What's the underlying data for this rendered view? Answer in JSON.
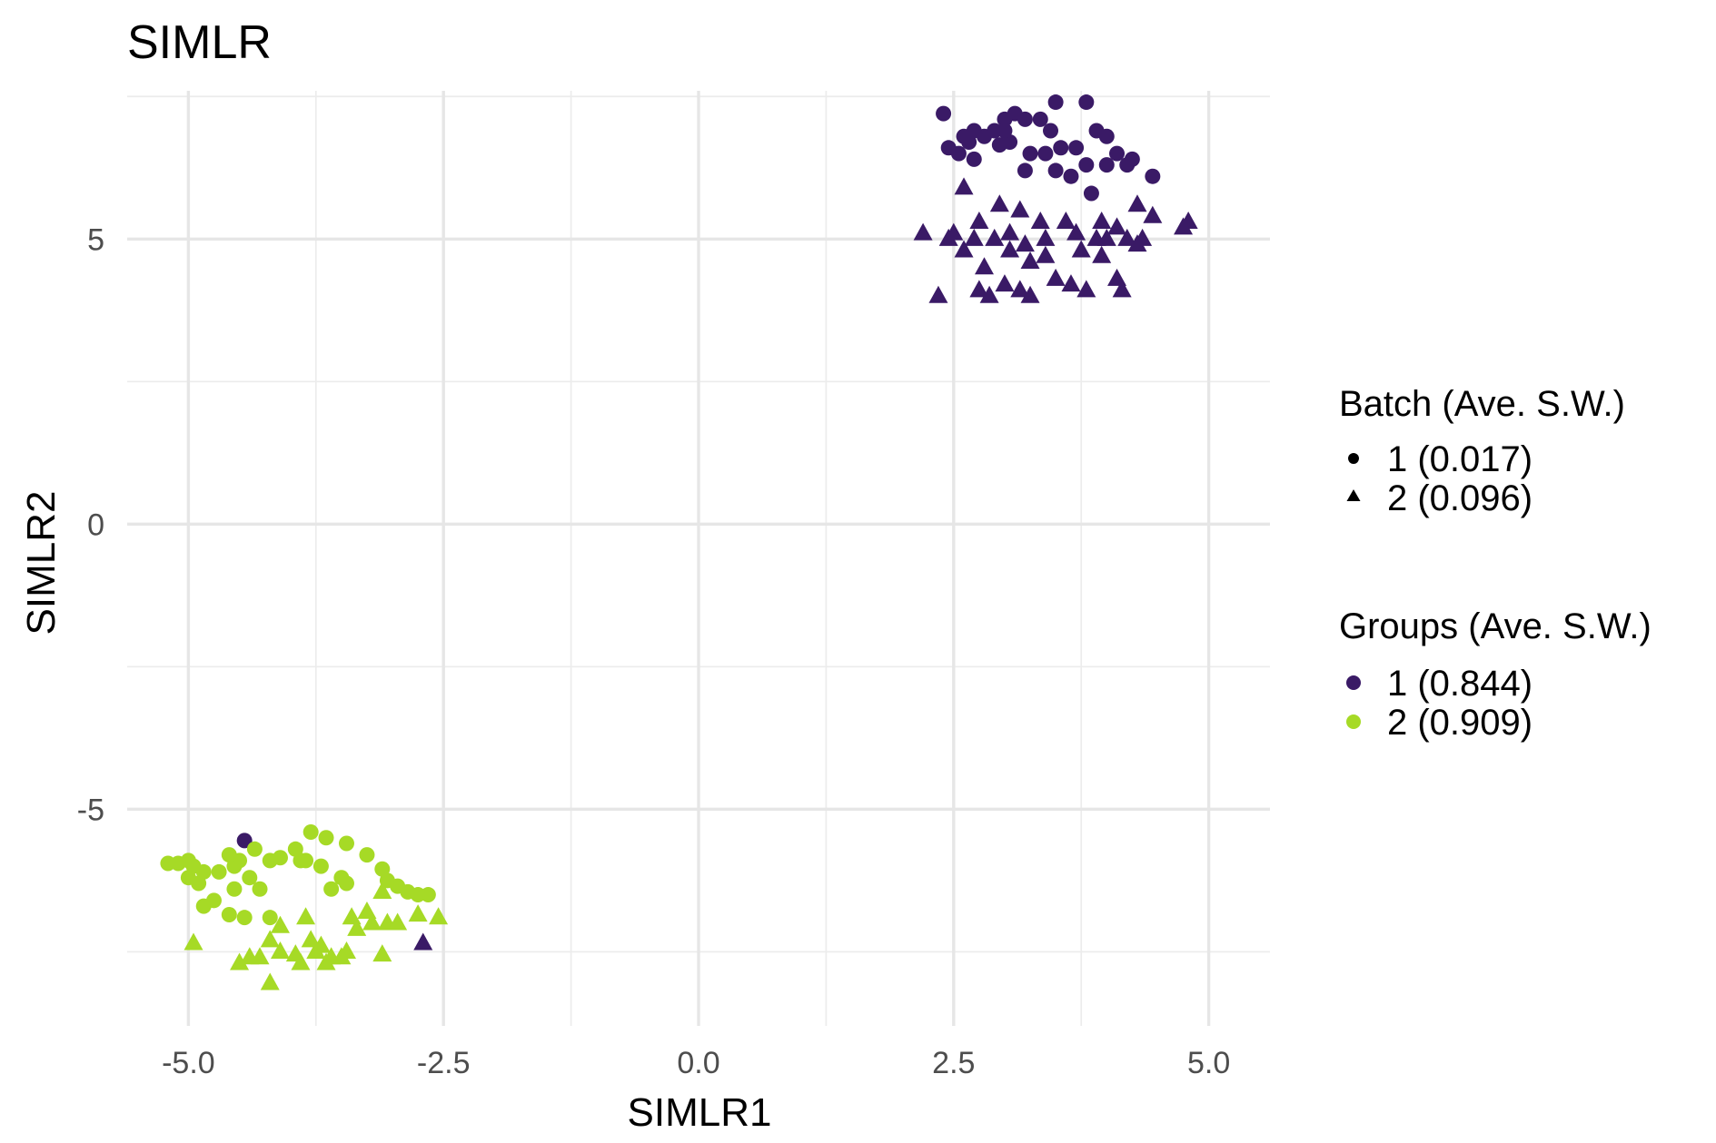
{
  "chart_data": {
    "type": "scatter",
    "title": "SIMLR",
    "xlabel": "SIMLR1",
    "ylabel": "SIMLR2",
    "xlim": [
      -5.6,
      5.6
    ],
    "ylim": [
      -8.8,
      7.6
    ],
    "x_ticks": [
      -5.0,
      -2.5,
      0.0,
      2.5,
      5.0
    ],
    "x_tick_labels": [
      "-5.0",
      "-2.5",
      "0.0",
      "2.5",
      "5.0"
    ],
    "y_ticks": [
      -5,
      0,
      5
    ],
    "y_tick_labels": [
      "-5",
      "0",
      "5"
    ],
    "grid": true,
    "legend_position": "right",
    "colors": {
      "group1": "#3a1a66",
      "group2": "#a6da26",
      "shape_key": "#000000"
    },
    "legend": {
      "batch": {
        "title": "Batch (Ave. S.W.)",
        "entries": [
          {
            "label": "1 (0.017)",
            "shape": "circle"
          },
          {
            "label": "2 (0.096)",
            "shape": "triangle"
          }
        ]
      },
      "groups": {
        "title": "Groups (Ave. S.W.)",
        "entries": [
          {
            "label": "1 (0.844)",
            "color": "#3a1a66"
          },
          {
            "label": "2 (0.909)",
            "color": "#a6da26"
          }
        ]
      }
    },
    "series": [
      {
        "group": 1,
        "batch": 1,
        "points": [
          [
            2.4,
            7.2
          ],
          [
            2.6,
            6.8
          ],
          [
            2.7,
            6.9
          ],
          [
            2.9,
            6.9
          ],
          [
            3.0,
            7.1
          ],
          [
            3.1,
            7.2
          ],
          [
            3.2,
            7.1
          ],
          [
            3.35,
            7.1
          ],
          [
            3.5,
            7.4
          ],
          [
            3.8,
            7.4
          ],
          [
            3.9,
            6.9
          ],
          [
            4.0,
            6.8
          ],
          [
            2.45,
            6.6
          ],
          [
            2.65,
            6.7
          ],
          [
            2.8,
            6.8
          ],
          [
            2.95,
            6.65
          ],
          [
            3.05,
            6.7
          ],
          [
            3.25,
            6.5
          ],
          [
            3.4,
            6.5
          ],
          [
            3.55,
            6.6
          ],
          [
            3.7,
            6.6
          ],
          [
            4.1,
            6.5
          ],
          [
            4.25,
            6.4
          ],
          [
            2.7,
            6.4
          ],
          [
            3.2,
            6.2
          ],
          [
            3.5,
            6.2
          ],
          [
            3.8,
            6.3
          ],
          [
            4.0,
            6.3
          ],
          [
            4.2,
            6.3
          ],
          [
            4.45,
            6.1
          ],
          [
            3.65,
            6.1
          ],
          [
            3.85,
            5.8
          ],
          [
            3.0,
            6.9
          ],
          [
            3.45,
            6.9
          ],
          [
            2.55,
            6.5
          ]
        ]
      },
      {
        "group": 1,
        "batch": 2,
        "points": [
          [
            2.2,
            5.1
          ],
          [
            2.45,
            5.0
          ],
          [
            2.6,
            5.9
          ],
          [
            2.75,
            5.3
          ],
          [
            2.95,
            5.6
          ],
          [
            3.15,
            5.5
          ],
          [
            3.35,
            5.3
          ],
          [
            3.6,
            5.3
          ],
          [
            3.95,
            5.3
          ],
          [
            4.1,
            5.2
          ],
          [
            4.3,
            5.6
          ],
          [
            4.45,
            5.4
          ],
          [
            4.8,
            5.3
          ],
          [
            2.5,
            5.1
          ],
          [
            2.7,
            5.0
          ],
          [
            2.9,
            5.0
          ],
          [
            3.05,
            5.1
          ],
          [
            3.2,
            4.9
          ],
          [
            3.4,
            5.0
          ],
          [
            3.7,
            5.1
          ],
          [
            3.9,
            5.0
          ],
          [
            4.0,
            5.0
          ],
          [
            4.2,
            5.0
          ],
          [
            4.35,
            5.0
          ],
          [
            4.75,
            5.2
          ],
          [
            2.6,
            4.8
          ],
          [
            2.8,
            4.5
          ],
          [
            3.05,
            4.8
          ],
          [
            3.25,
            4.6
          ],
          [
            3.4,
            4.7
          ],
          [
            3.75,
            4.8
          ],
          [
            3.95,
            4.7
          ],
          [
            4.1,
            4.3
          ],
          [
            2.35,
            4.0
          ],
          [
            2.75,
            4.1
          ],
          [
            2.85,
            4.0
          ],
          [
            3.0,
            4.2
          ],
          [
            3.15,
            4.1
          ],
          [
            3.25,
            4.0
          ],
          [
            3.5,
            4.3
          ],
          [
            3.65,
            4.2
          ],
          [
            3.8,
            4.1
          ],
          [
            4.15,
            4.1
          ],
          [
            4.3,
            4.9
          ]
        ]
      },
      {
        "group": 1,
        "batch": 1,
        "points": [
          [
            -4.45,
            -5.55
          ]
        ]
      },
      {
        "group": 1,
        "batch": 2,
        "points": [
          [
            -2.7,
            -7.35
          ]
        ]
      },
      {
        "group": 2,
        "batch": 1,
        "points": [
          [
            -5.2,
            -5.95
          ],
          [
            -5.1,
            -5.95
          ],
          [
            -5.0,
            -5.9
          ],
          [
            -4.95,
            -6.0
          ],
          [
            -4.85,
            -6.1
          ],
          [
            -4.7,
            -6.1
          ],
          [
            -4.55,
            -6.0
          ],
          [
            -4.5,
            -5.9
          ],
          [
            -4.35,
            -5.7
          ],
          [
            -4.2,
            -5.9
          ],
          [
            -3.95,
            -5.7
          ],
          [
            -3.8,
            -5.4
          ],
          [
            -3.65,
            -5.5
          ],
          [
            -3.45,
            -5.6
          ],
          [
            -3.25,
            -5.8
          ],
          [
            -3.85,
            -5.9
          ],
          [
            -3.7,
            -6.0
          ],
          [
            -3.5,
            -6.2
          ],
          [
            -3.45,
            -6.3
          ],
          [
            -3.05,
            -6.25
          ],
          [
            -2.95,
            -6.35
          ],
          [
            -2.85,
            -6.45
          ],
          [
            -2.75,
            -6.5
          ],
          [
            -2.65,
            -6.5
          ],
          [
            -4.9,
            -6.3
          ],
          [
            -4.75,
            -6.6
          ],
          [
            -4.55,
            -6.4
          ],
          [
            -4.3,
            -6.4
          ],
          [
            -4.2,
            -6.9
          ],
          [
            -4.45,
            -6.9
          ],
          [
            -4.6,
            -6.85
          ],
          [
            -4.85,
            -6.7
          ],
          [
            -5.0,
            -6.2
          ],
          [
            -4.4,
            -6.2
          ],
          [
            -3.6,
            -6.4
          ],
          [
            -4.1,
            -5.85
          ],
          [
            -4.6,
            -5.8
          ],
          [
            -3.1,
            -6.05
          ],
          [
            -3.9,
            -5.9
          ]
        ]
      },
      {
        "group": 2,
        "batch": 2,
        "points": [
          [
            -4.95,
            -7.35
          ],
          [
            -4.5,
            -7.7
          ],
          [
            -4.3,
            -7.6
          ],
          [
            -4.2,
            -7.3
          ],
          [
            -4.1,
            -7.5
          ],
          [
            -3.95,
            -7.55
          ],
          [
            -3.8,
            -7.3
          ],
          [
            -3.7,
            -7.4
          ],
          [
            -3.6,
            -7.6
          ],
          [
            -3.45,
            -7.5
          ],
          [
            -3.35,
            -7.1
          ],
          [
            -3.2,
            -7.0
          ],
          [
            -3.05,
            -7.0
          ],
          [
            -2.95,
            -7.0
          ],
          [
            -2.75,
            -6.85
          ],
          [
            -2.55,
            -6.9
          ],
          [
            -3.25,
            -6.8
          ],
          [
            -3.1,
            -6.45
          ],
          [
            -4.1,
            -7.05
          ],
          [
            -3.85,
            -6.9
          ],
          [
            -4.4,
            -7.6
          ],
          [
            -3.9,
            -7.7
          ],
          [
            -3.65,
            -7.7
          ],
          [
            -3.5,
            -7.6
          ],
          [
            -4.2,
            -8.05
          ],
          [
            -3.75,
            -7.5
          ],
          [
            -3.4,
            -6.9
          ],
          [
            -3.1,
            -7.55
          ]
        ]
      }
    ]
  }
}
